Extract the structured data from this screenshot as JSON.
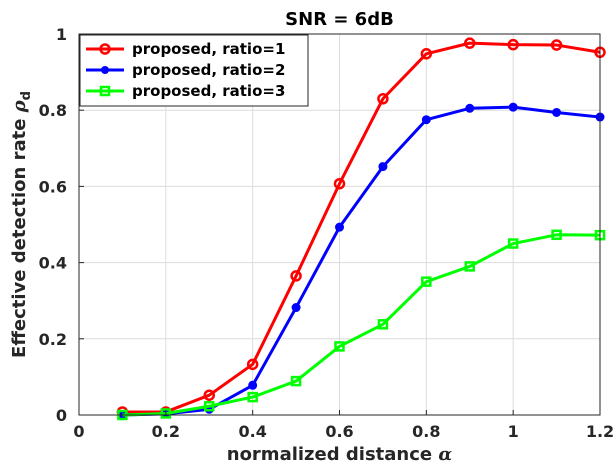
{
  "chart_data": {
    "type": "line",
    "title": "SNR = 6dB",
    "xlabel": "normalized distance",
    "xlabel_symbol": "α",
    "ylabel": "Effective detection rate",
    "ylabel_symbol": "ρ",
    "ylabel_subscript": "d",
    "xlim": [
      0,
      1.2
    ],
    "ylim": [
      0,
      1
    ],
    "xticks": [
      0,
      0.2,
      0.4,
      0.6,
      0.8,
      1,
      1.2
    ],
    "xtick_labels": [
      "0",
      "0.2",
      "0.4",
      "0.6",
      "0.8",
      "1",
      "1.2"
    ],
    "yticks": [
      0,
      0.2,
      0.4,
      0.6,
      0.8,
      1
    ],
    "ytick_labels": [
      "0",
      "0.2",
      "0.4",
      "0.6",
      "0.8",
      "1"
    ],
    "grid": true,
    "legend_position": "top-left",
    "x": [
      0.1,
      0.2,
      0.3,
      0.4,
      0.5,
      0.6,
      0.7,
      0.8,
      0.9,
      1.0,
      1.1,
      1.2
    ],
    "series": [
      {
        "name": "proposed, ratio=1",
        "color": "#ff0000",
        "marker": "circle",
        "values": [
          0.008,
          0.008,
          0.052,
          0.133,
          0.365,
          0.607,
          0.83,
          0.948,
          0.976,
          0.972,
          0.971,
          0.952
        ]
      },
      {
        "name": "proposed, ratio=2",
        "color": "#0000ff",
        "marker": "dot",
        "values": [
          0.0,
          0.003,
          0.015,
          0.078,
          0.282,
          0.493,
          0.652,
          0.775,
          0.805,
          0.808,
          0.794,
          0.782
        ]
      },
      {
        "name": "proposed, ratio=3",
        "color": "#00ff00",
        "marker": "square",
        "values": [
          0.0,
          0.004,
          0.023,
          0.047,
          0.089,
          0.18,
          0.238,
          0.35,
          0.39,
          0.45,
          0.473,
          0.472
        ]
      }
    ]
  }
}
